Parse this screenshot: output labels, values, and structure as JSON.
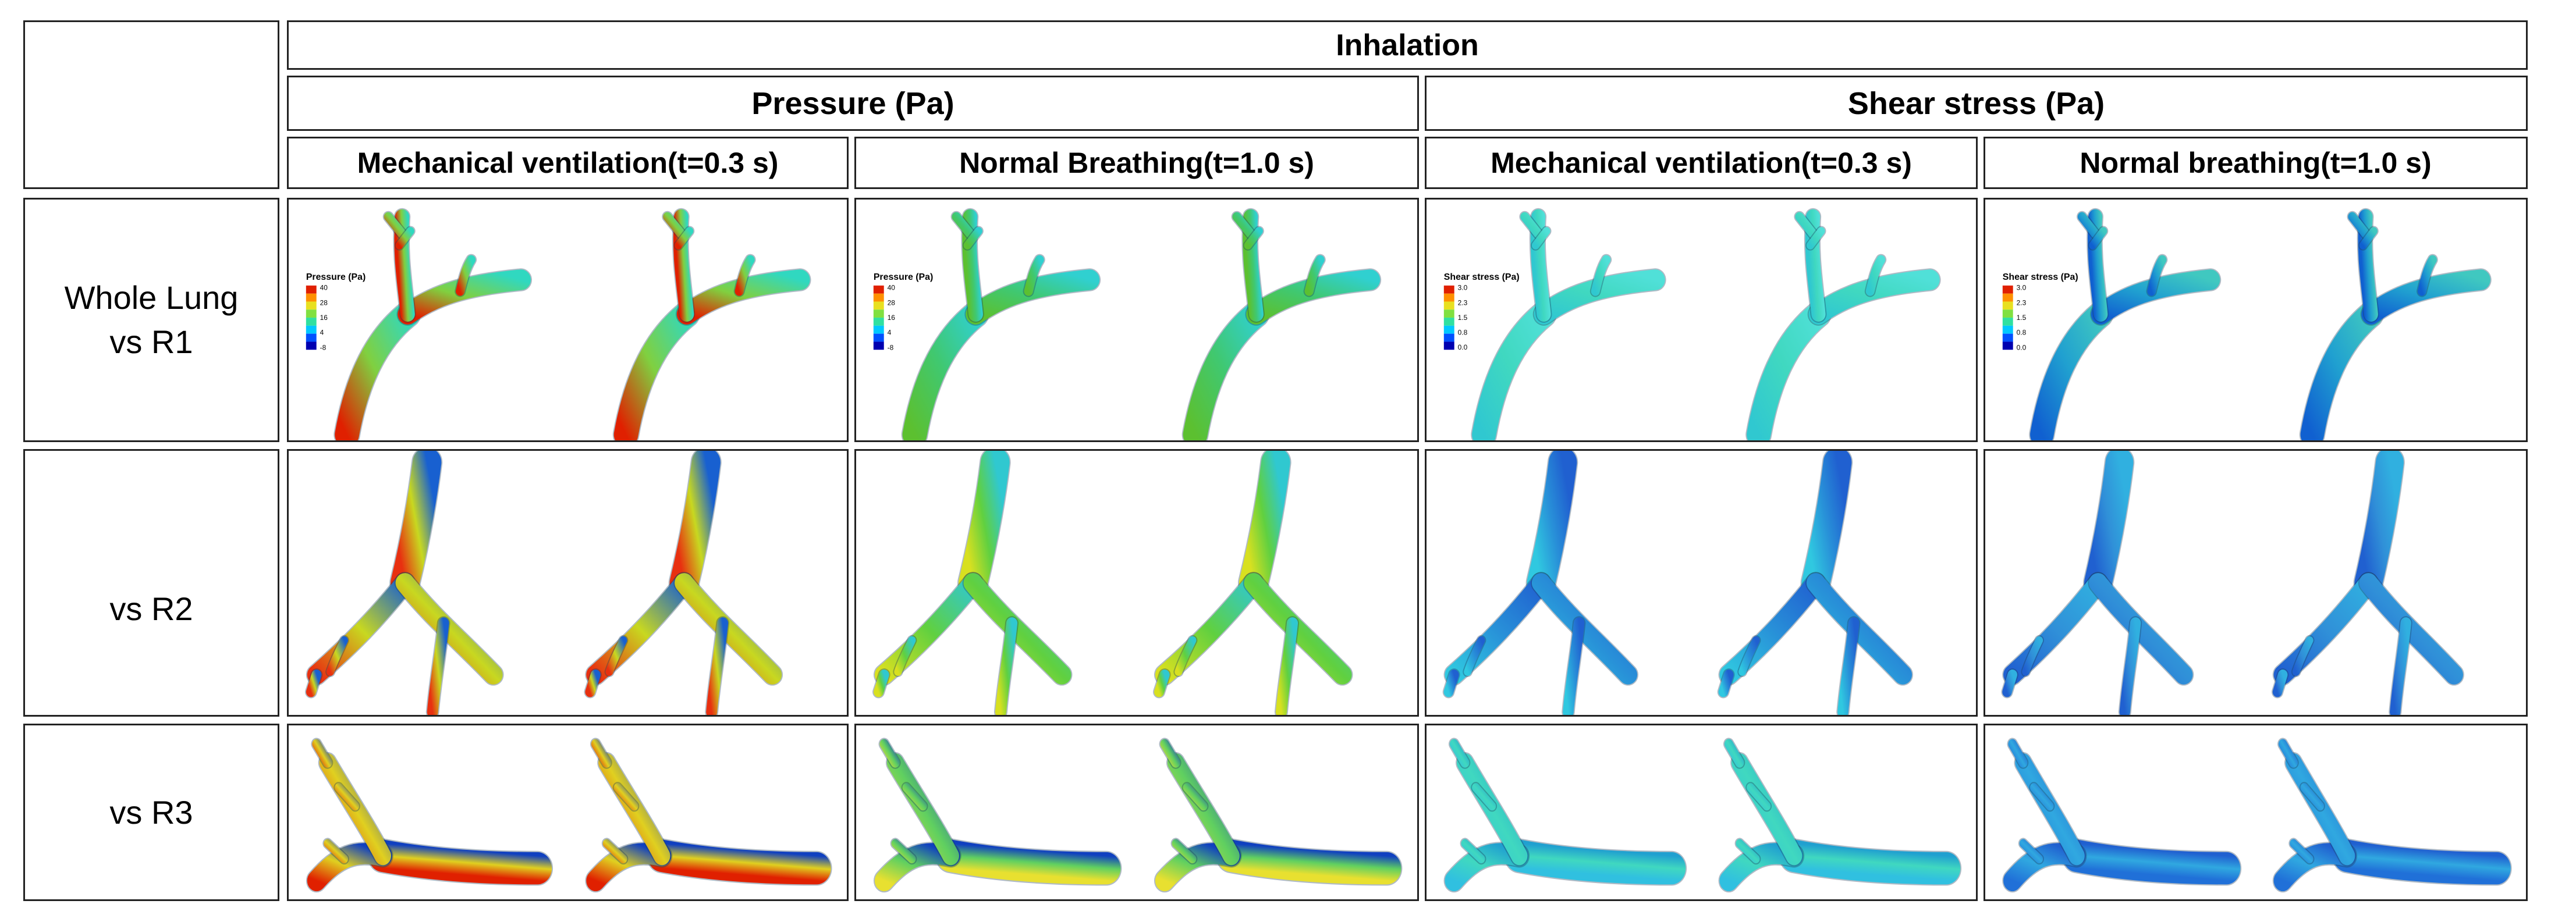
{
  "header": {
    "phase": "Inhalation",
    "quantities": [
      "Pressure (Pa)",
      "Shear stress (Pa)"
    ],
    "conditions": [
      "Mechanical ventilation(t=0.3 s)",
      "Normal Breathing(t=1.0 s)",
      "Mechanical ventilation(t=0.3 s)",
      "Normal breathing(t=1.0 s)"
    ]
  },
  "rows": [
    {
      "label_line1": "Whole Lung",
      "label_line2": "vs R1"
    },
    {
      "label_line1": "",
      "label_line2": "vs R2"
    },
    {
      "label_line1": "",
      "label_line2": "vs R3"
    }
  ],
  "legends": {
    "pressure_mv": {
      "title": "Pressure (Pa)",
      "ticks": [
        "40",
        "28",
        "16",
        "4",
        "-8"
      ]
    },
    "pressure_nb": {
      "title": "Pressure (Pa)",
      "ticks": [
        "40",
        "28",
        "16",
        "4",
        "-8"
      ]
    },
    "shear_mv": {
      "title": "Shear stress (Pa)",
      "ticks": [
        "3.0",
        "2.3",
        "1.5",
        "0.8",
        "0.0"
      ]
    },
    "shear_nb": {
      "title": "Shear stress (Pa)",
      "ticks": [
        "3.0",
        "2.3",
        "1.5",
        "0.8",
        "0.0"
      ]
    }
  },
  "colormap": [
    "#0000b0",
    "#0050ff",
    "#00c8ff",
    "#30e0a0",
    "#80e040",
    "#e8e020",
    "#ff9000",
    "#e02000"
  ],
  "cells": [
    [
      {
        "id": "r1-p-mv",
        "stops": [
          "#e02000",
          "#80d040",
          "#30d8c0"
        ]
      },
      {
        "id": "r1-p-nb",
        "stops": [
          "#5cc030",
          "#40c870",
          "#30d0d0"
        ]
      },
      {
        "id": "r1-s-mv",
        "stops": [
          "#30c8d0",
          "#40d8c0",
          "#50e0d8"
        ]
      },
      {
        "id": "r1-s-nb",
        "stops": [
          "#1060d0",
          "#20a0d0",
          "#40c8c0"
        ]
      }
    ],
    [
      {
        "id": "r2-p-mv",
        "stops": [
          "#e83010",
          "#c8d820",
          "#1860d0"
        ]
      },
      {
        "id": "r2-p-nb",
        "stops": [
          "#d8e020",
          "#60d040",
          "#30c8d0"
        ]
      },
      {
        "id": "r2-s-mv",
        "stops": [
          "#30c8e0",
          "#2890d8",
          "#2060d0"
        ]
      },
      {
        "id": "r2-s-nb",
        "stops": [
          "#2060d0",
          "#3090d8",
          "#30b0e0"
        ]
      }
    ],
    [
      {
        "id": "r3-p-mv",
        "stops": [
          "#e02000",
          "#e0d020",
          "#1040c0"
        ]
      },
      {
        "id": "r3-p-nb",
        "stops": [
          "#e8e030",
          "#60d060",
          "#1040c0"
        ]
      },
      {
        "id": "r3-s-mv",
        "stops": [
          "#30c0e0",
          "#40d8c0",
          "#20a0d0"
        ]
      },
      {
        "id": "r3-s-nb",
        "stops": [
          "#2070d8",
          "#30a8e0",
          "#2060d0"
        ]
      }
    ]
  ]
}
